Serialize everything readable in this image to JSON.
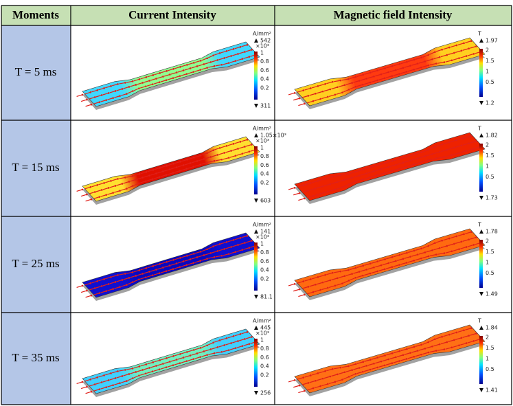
{
  "table": {
    "header": [
      "Moments",
      "Current Intensity",
      "Magnetic field Intensity"
    ],
    "rows": [
      {
        "moment": "T = 5 ms",
        "current": {
          "unit": "A/mm²",
          "max": "542",
          "exponent": "×10³",
          "ticks": [
            "1",
            "0.8",
            "0.6",
            "0.4",
            "0.2"
          ],
          "min": "311"
        },
        "magnetic": {
          "unit": "T",
          "max": "1.97",
          "ticks": [
            "2",
            "1.5",
            "1",
            "0.5"
          ],
          "min": "1.2"
        }
      },
      {
        "moment": "T = 15 ms",
        "current": {
          "unit": "A/mm²",
          "max": "1.05×10³",
          "exponent": "×10³",
          "ticks": [
            "1",
            "0.8",
            "0.6",
            "0.4",
            "0.2"
          ],
          "min": "603"
        },
        "magnetic": {
          "unit": "T",
          "max": "1.82",
          "ticks": [
            "2",
            "1.5",
            "1",
            "0.5"
          ],
          "min": "1.73"
        }
      },
      {
        "moment": "T = 25 ms",
        "current": {
          "unit": "A/mm²",
          "max": "141",
          "exponent": "×10³",
          "ticks": [
            "1",
            "0.8",
            "0.6",
            "0.4",
            "0.2"
          ],
          "min": "81.1"
        },
        "magnetic": {
          "unit": "T",
          "max": "1.78",
          "ticks": [
            "2",
            "1.5",
            "1",
            "0.5"
          ],
          "min": "1.49"
        }
      },
      {
        "moment": "T = 35 ms",
        "current": {
          "unit": "A/mm²",
          "max": "445",
          "exponent": "×10³",
          "ticks": [
            "1",
            "0.8",
            "0.6",
            "0.4",
            "0.2"
          ],
          "min": "256"
        },
        "magnetic": {
          "unit": "T",
          "max": "1.84",
          "ticks": [
            "2",
            "1.5",
            "1",
            "0.5"
          ],
          "min": "1.41"
        }
      }
    ]
  }
}
